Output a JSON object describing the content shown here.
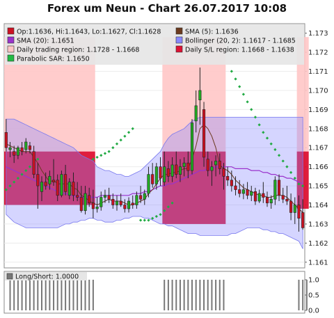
{
  "chart_data": {
    "type": "candlestick",
    "title": "Forex um Neun - Chart 26.07.2017 10:08",
    "y_ticks": [
      "1.173",
      "1.172",
      "1.171",
      "1.170",
      "1.169",
      "1.168",
      "1.167",
      "1.166",
      "1.165",
      "1.164",
      "1.163",
      "1.162",
      "1.161"
    ],
    "ylim": [
      1.1607,
      1.1735
    ],
    "legend": [
      {
        "text": "Op:1.1636, Hi:1.1643, Lo:1.1627, Cl:1.1628",
        "color": "#cc1122"
      },
      {
        "text": "SMA (5): 1.1636",
        "color": "#6b3a1f"
      },
      {
        "text": "SMA (20): 1.1651",
        "color": "#9a33cc"
      },
      {
        "text": "Bollinger (20, 2): 1.1617 - 1.1685",
        "color": "#8888ff"
      },
      {
        "text": "Daily trading region: 1.1728 - 1.1668",
        "color": "#ffc6c6"
      },
      {
        "text": "Daily S/L region: 1.1668 - 1.1638",
        "color": "#dd1133"
      },
      {
        "text": "Parabolic SAR: 1.1650",
        "color": "#22bb44"
      }
    ],
    "regions": [
      {
        "x0": 0,
        "x1": 23,
        "trading": [
          1.1728,
          1.1668
        ],
        "sl": [
          1.1668,
          1.164
        ]
      },
      {
        "x0": 40,
        "x1": 56,
        "trading": [
          1.1728,
          1.1668
        ],
        "sl": [
          1.1668,
          1.163
        ]
      },
      {
        "x0": 74,
        "x1": 77,
        "trading": [
          1.1728,
          1.1668
        ],
        "sl": [
          1.1668,
          1.1638
        ]
      }
    ],
    "candles": [
      [
        1.1678,
        1.1685,
        1.1668,
        1.167
      ],
      [
        1.1669,
        1.1673,
        1.1665,
        1.167
      ],
      [
        1.1668,
        1.1671,
        1.1662,
        1.1666
      ],
      [
        1.1666,
        1.1671,
        1.1664,
        1.167
      ],
      [
        1.167,
        1.1673,
        1.1666,
        1.1668
      ],
      [
        1.1669,
        1.1675,
        1.1667,
        1.1673
      ],
      [
        1.1671,
        1.1673,
        1.1667,
        1.1669
      ],
      [
        1.1668,
        1.1671,
        1.1654,
        1.1656
      ],
      [
        1.1656,
        1.1662,
        1.1638,
        1.165
      ],
      [
        1.1647,
        1.1655,
        1.1642,
        1.1652
      ],
      [
        1.1652,
        1.1657,
        1.1648,
        1.165
      ],
      [
        1.1651,
        1.1658,
        1.1648,
        1.1655
      ],
      [
        1.1653,
        1.1664,
        1.165,
        1.1652
      ],
      [
        1.1653,
        1.1656,
        1.1642,
        1.1645
      ],
      [
        1.1645,
        1.1658,
        1.1644,
        1.1656
      ],
      [
        1.1656,
        1.1661,
        1.1645,
        1.1647
      ],
      [
        1.1645,
        1.1654,
        1.1643,
        1.1652
      ],
      [
        1.1652,
        1.1657,
        1.1642,
        1.1645
      ],
      [
        1.1645,
        1.1652,
        1.1642,
        1.1644
      ],
      [
        1.1644,
        1.165,
        1.1636,
        1.1637
      ],
      [
        1.1637,
        1.165,
        1.1635,
        1.1646
      ],
      [
        1.1645,
        1.1649,
        1.1639,
        1.1641
      ],
      [
        1.1641,
        1.1648,
        1.1633,
        1.1638
      ],
      [
        1.1638,
        1.1644,
        1.1636,
        1.1639
      ],
      [
        1.1639,
        1.1647,
        1.1637,
        1.1644
      ],
      [
        1.1644,
        1.1648,
        1.1641,
        1.1645
      ],
      [
        1.1645,
        1.1649,
        1.1641,
        1.1643
      ],
      [
        1.1643,
        1.1646,
        1.1638,
        1.164
      ],
      [
        1.164,
        1.1645,
        1.1637,
        1.1642
      ],
      [
        1.1642,
        1.1646,
        1.1639,
        1.164
      ],
      [
        1.164,
        1.1643,
        1.1636,
        1.1638
      ],
      [
        1.1638,
        1.1644,
        1.1636,
        1.1642
      ],
      [
        1.1641,
        1.1645,
        1.1638,
        1.164
      ],
      [
        1.164,
        1.1647,
        1.1638,
        1.1645
      ],
      [
        1.1645,
        1.165,
        1.1641,
        1.1643
      ],
      [
        1.1643,
        1.1648,
        1.164,
        1.1646
      ],
      [
        1.1646,
        1.166,
        1.1644,
        1.1656
      ],
      [
        1.1656,
        1.1662,
        1.1649,
        1.1651
      ],
      [
        1.1651,
        1.1662,
        1.1648,
        1.166
      ],
      [
        1.166,
        1.1665,
        1.165,
        1.1654
      ],
      [
        1.1652,
        1.1668,
        1.165,
        1.166
      ],
      [
        1.1659,
        1.1663,
        1.1652,
        1.1655
      ],
      [
        1.1655,
        1.1665,
        1.1652,
        1.1661
      ],
      [
        1.1661,
        1.1668,
        1.1654,
        1.1656
      ],
      [
        1.1656,
        1.1664,
        1.1652,
        1.166
      ],
      [
        1.166,
        1.1665,
        1.1655,
        1.1662
      ],
      [
        1.1662,
        1.1668,
        1.1654,
        1.1658
      ],
      [
        1.1658,
        1.1685,
        1.1656,
        1.1683
      ],
      [
        1.1684,
        1.17,
        1.1678,
        1.1692
      ],
      [
        1.1695,
        1.1712,
        1.1682,
        1.17
      ],
      [
        1.169,
        1.1694,
        1.166,
        1.1665
      ],
      [
        1.1664,
        1.1668,
        1.1655,
        1.1658
      ],
      [
        1.1658,
        1.1663,
        1.165,
        1.166
      ],
      [
        1.1661,
        1.1666,
        1.1655,
        1.1663
      ],
      [
        1.1663,
        1.1667,
        1.1656,
        1.1659
      ],
      [
        1.1659,
        1.1662,
        1.1648,
        1.1655
      ],
      [
        1.1655,
        1.166,
        1.165,
        1.1653
      ],
      [
        1.1653,
        1.1658,
        1.1647,
        1.165
      ],
      [
        1.165,
        1.1655,
        1.1645,
        1.1648
      ],
      [
        1.1648,
        1.1653,
        1.1644,
        1.1646
      ],
      [
        1.1646,
        1.1651,
        1.1643,
        1.1648
      ],
      [
        1.1648,
        1.1652,
        1.1643,
        1.1645
      ],
      [
        1.1645,
        1.165,
        1.1642,
        1.1647
      ],
      [
        1.1647,
        1.1649,
        1.164,
        1.1642
      ],
      [
        1.1642,
        1.1648,
        1.1641,
        1.1646
      ],
      [
        1.1646,
        1.1652,
        1.1641,
        1.1644
      ],
      [
        1.1644,
        1.1647,
        1.1639,
        1.1641
      ],
      [
        1.1641,
        1.1645,
        1.1638,
        1.1643
      ],
      [
        1.1643,
        1.1655,
        1.164,
        1.1653
      ],
      [
        1.1653,
        1.1656,
        1.1642,
        1.1645
      ],
      [
        1.1645,
        1.1649,
        1.1641,
        1.1643
      ],
      [
        1.1643,
        1.165,
        1.164,
        1.1642
      ],
      [
        1.1642,
        1.1646,
        1.1632,
        1.1636
      ],
      [
        1.1636,
        1.1644,
        1.163,
        1.164
      ],
      [
        1.164,
        1.1645,
        1.1626,
        1.1633
      ],
      [
        1.1636,
        1.1643,
        1.1627,
        1.1628
      ]
    ],
    "sma20": [
      1.166,
      1.1659,
      1.1658,
      1.1657,
      1.1656,
      1.1655,
      1.1654,
      1.1653,
      1.1652,
      1.1651,
      1.165,
      1.1649,
      1.1648,
      1.1647,
      1.1646,
      1.1646,
      1.1645,
      1.1645,
      1.1644,
      1.1644,
      1.1644,
      1.1644,
      1.1644,
      1.1644,
      1.1645,
      1.1645,
      1.1645,
      1.1645,
      1.1645,
      1.1645,
      1.1645,
      1.1645,
      1.1646,
      1.1646,
      1.1646,
      1.1647,
      1.1647,
      1.1648,
      1.1649,
      1.165,
      1.165,
      1.1651,
      1.1651,
      1.1652,
      1.1653,
      1.1654,
      1.1655,
      1.1656,
      1.1657,
      1.1658,
      1.1658,
      1.1659,
      1.1659,
      1.166,
      1.166,
      1.166,
      1.166,
      1.166,
      1.1659,
      1.1659,
      1.1659,
      1.1659,
      1.1658,
      1.1658,
      1.1658,
      1.1657,
      1.1657,
      1.1656,
      1.1656,
      1.1655,
      1.1655,
      1.1654,
      1.1654,
      1.1653,
      1.1652,
      1.1651
    ],
    "sma5": [
      1.1672,
      1.1671,
      1.167,
      1.1669,
      1.1668,
      1.1668,
      1.1668,
      1.1665,
      1.1662,
      1.1658,
      1.1655,
      1.1652,
      1.1653,
      1.1651,
      1.1651,
      1.1651,
      1.1651,
      1.1649,
      1.1648,
      1.1645,
      1.1644,
      1.1642,
      1.1641,
      1.164,
      1.1641,
      1.1642,
      1.1643,
      1.1642,
      1.1642,
      1.1642,
      1.1641,
      1.164,
      1.164,
      1.1641,
      1.1642,
      1.1643,
      1.1646,
      1.1648,
      1.1651,
      1.1654,
      1.1656,
      1.1656,
      1.1657,
      1.1657,
      1.1658,
      1.1659,
      1.1659,
      1.1664,
      1.1671,
      1.168,
      1.1682,
      1.168,
      1.1676,
      1.167,
      1.1661,
      1.1659,
      1.1658,
      1.1656,
      1.1653,
      1.1651,
      1.1649,
      1.1648,
      1.1647,
      1.1646,
      1.1645,
      1.1645,
      1.1644,
      1.1644,
      1.1645,
      1.1645,
      1.1645,
      1.1644,
      1.1642,
      1.164,
      1.1638,
      1.1636
    ],
    "bb_upper": [
      1.1685,
      1.1685,
      1.1685,
      1.1684,
      1.1683,
      1.1682,
      1.1681,
      1.168,
      1.1679,
      1.1678,
      1.1677,
      1.1676,
      1.1675,
      1.1674,
      1.1673,
      1.1672,
      1.1671,
      1.167,
      1.1668,
      1.1666,
      1.1665,
      1.1664,
      1.1663,
      1.166,
      1.1659,
      1.1658,
      1.1658,
      1.1657,
      1.1656,
      1.1656,
      1.1655,
      1.1655,
      1.1656,
      1.1657,
      1.1658,
      1.166,
      1.1662,
      1.1664,
      1.1666,
      1.1668,
      1.1672,
      1.1675,
      1.1677,
      1.1678,
      1.1679,
      1.168,
      1.1682,
      1.1684,
      1.1685,
      1.1686,
      1.1686,
      1.1686,
      1.1686,
      1.1686,
      1.1686,
      1.1686,
      1.1686,
      1.1686,
      1.1686,
      1.1686,
      1.1686,
      1.1686,
      1.1686,
      1.1686,
      1.1686,
      1.1686,
      1.1686,
      1.1686,
      1.1686,
      1.1686,
      1.1686,
      1.1686,
      1.1686,
      1.1686,
      1.1686,
      1.1686
    ],
    "bb_lower": [
      1.1635,
      1.1633,
      1.1631,
      1.163,
      1.1629,
      1.1628,
      1.1628,
      1.1628,
      1.1628,
      1.1628,
      1.1628,
      1.1628,
      1.1628,
      1.1628,
      1.1629,
      1.163,
      1.163,
      1.1631,
      1.1631,
      1.1632,
      1.1632,
      1.1633,
      1.1633,
      1.1632,
      1.1632,
      1.1631,
      1.1631,
      1.1631,
      1.1632,
      1.1632,
      1.1633,
      1.1633,
      1.1634,
      1.1634,
      1.1634,
      1.1633,
      1.1633,
      1.1632,
      1.1631,
      1.163,
      1.163,
      1.1629,
      1.1629,
      1.1628,
      1.1627,
      1.1626,
      1.1625,
      1.1625,
      1.1625,
      1.1624,
      1.1624,
      1.1624,
      1.1624,
      1.1624,
      1.1624,
      1.1624,
      1.1624,
      1.1625,
      1.1625,
      1.1626,
      1.1627,
      1.1628,
      1.1628,
      1.1628,
      1.1628,
      1.1627,
      1.1627,
      1.1626,
      1.1626,
      1.1625,
      1.1625,
      1.1624,
      1.1623,
      1.1622,
      1.1621,
      1.1617
    ],
    "sar_points": [
      [
        0,
        1.1648
      ],
      [
        1,
        1.165
      ],
      [
        2,
        1.1652
      ],
      [
        3,
        1.1654
      ],
      [
        4,
        1.1656
      ],
      [
        5,
        1.1658
      ],
      [
        6,
        1.166
      ],
      [
        7,
        1.1662
      ],
      [
        8,
        1.1664
      ],
      [
        22,
        1.1664
      ],
      [
        23,
        1.1665
      ],
      [
        24,
        1.1666
      ],
      [
        25,
        1.1667
      ],
      [
        26,
        1.1668
      ],
      [
        27,
        1.167
      ],
      [
        28,
        1.1672
      ],
      [
        29,
        1.1674
      ],
      [
        30,
        1.1676
      ],
      [
        31,
        1.1678
      ],
      [
        32,
        1.168
      ],
      [
        34,
        1.1632
      ],
      [
        35,
        1.1632
      ],
      [
        36,
        1.1632
      ],
      [
        37,
        1.1633
      ],
      [
        38,
        1.1634
      ],
      [
        39,
        1.1635
      ],
      [
        40,
        1.1637
      ],
      [
        41,
        1.1639
      ],
      [
        42,
        1.1641
      ],
      [
        57,
        1.171
      ],
      [
        58,
        1.1706
      ],
      [
        59,
        1.1702
      ],
      [
        60,
        1.1698
      ],
      [
        61,
        1.1694
      ],
      [
        62,
        1.169
      ],
      [
        63,
        1.1686
      ],
      [
        64,
        1.1682
      ],
      [
        65,
        1.1678
      ],
      [
        66,
        1.1675
      ],
      [
        67,
        1.1672
      ],
      [
        68,
        1.1669
      ],
      [
        69,
        1.1666
      ],
      [
        70,
        1.1663
      ],
      [
        71,
        1.166
      ],
      [
        72,
        1.1657
      ],
      [
        73,
        1.1654
      ],
      [
        74,
        1.1651
      ],
      [
        75,
        1.165
      ]
    ],
    "indicator_title": "Long/Short: 1.0000",
    "indicator_ticks": [
      "1.0",
      "0.5",
      "0.0"
    ],
    "indicator_ylim": [
      0,
      1
    ],
    "indicator_values": [
      0,
      1,
      1,
      1,
      1,
      1,
      1,
      1,
      1,
      1,
      1,
      1,
      1,
      1,
      1,
      1,
      1,
      1,
      1,
      1,
      1,
      1,
      1,
      0,
      0,
      0,
      0,
      0,
      0,
      0,
      0,
      0,
      0,
      0,
      0,
      0,
      0,
      0,
      0,
      0,
      1,
      1,
      1,
      1,
      1,
      1,
      1,
      1,
      1,
      1,
      1,
      1,
      1,
      1,
      1,
      1,
      0,
      0,
      0,
      0,
      0,
      0,
      0,
      0,
      0,
      0,
      0,
      0,
      0,
      0,
      0,
      0,
      0,
      0,
      1,
      1,
      1
    ]
  }
}
